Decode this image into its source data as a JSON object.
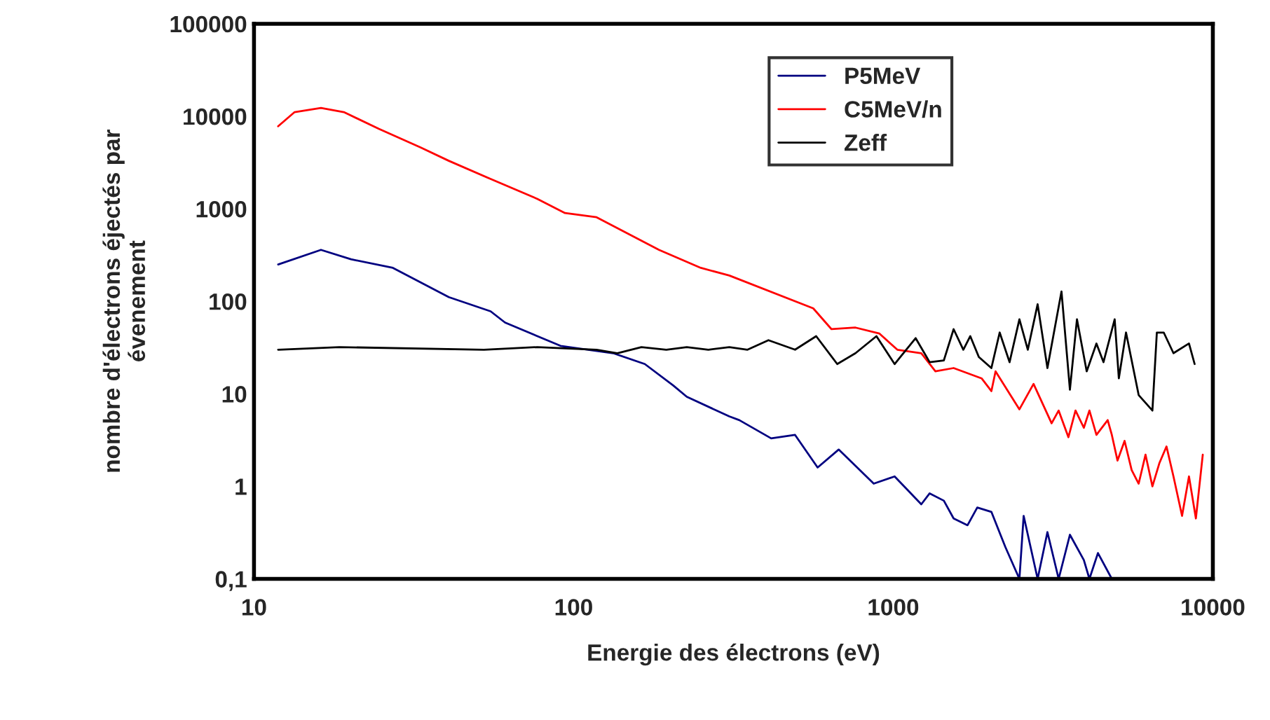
{
  "chart_data": {
    "type": "line",
    "xlabel": "Energie des électrons (eV)",
    "ylabel": "nombre d'électrons éjectés par\névenement",
    "log": "xy",
    "xlim": [
      10,
      10000
    ],
    "xticks": [
      10,
      100,
      1000,
      10000
    ],
    "ylim": [
      0.1,
      100000
    ],
    "yticks": [
      {
        "value": 0.1,
        "label": "0,1"
      },
      1,
      10,
      100,
      1000,
      10000,
      100000
    ],
    "grid": false,
    "legend": "top right",
    "marker": "none",
    "line_style": "solid",
    "series": [
      {
        "name": "P5MeV",
        "color": "#000080",
        "x": [
          11.9,
          16.2,
          20.1,
          27.2,
          40.7,
          55,
          61,
          91,
          133,
          167,
          205,
          226,
          307,
          330,
          415,
          493,
          580,
          675,
          869,
          1010,
          1224,
          1300,
          1440,
          1545,
          1708,
          1832,
          2028,
          2244,
          2482,
          2559,
          2830,
          3037,
          3293,
          3571,
          3948,
          4110,
          4370,
          4830
        ],
        "values": [
          250,
          360,
          285,
          230,
          111,
          78,
          59,
          33,
          27.5,
          21,
          12.3,
          9.3,
          5.7,
          5.2,
          3.3,
          3.6,
          1.6,
          2.5,
          1.07,
          1.28,
          0.64,
          0.84,
          0.7,
          0.45,
          0.38,
          0.59,
          0.53,
          0.22,
          0.1,
          0.48,
          0.1,
          0.32,
          0.1,
          0.3,
          0.16,
          0.1,
          0.19,
          0.1
        ]
      },
      {
        "name": "C5MeV/n",
        "color": "#ff0000",
        "x": [
          11.9,
          13.4,
          16.2,
          19.1,
          24.6,
          33.2,
          40.7,
          55,
          77,
          94,
          118,
          185,
          250,
          307,
          562,
          641,
          762,
          904,
          1030,
          1224,
          1355,
          1545,
          1890,
          2028,
          2090,
          2482,
          2748,
          3130,
          3293,
          3533,
          3718,
          3948,
          4110,
          4323,
          4688,
          4830,
          5032,
          5295,
          5571,
          5860,
          6157,
          6470,
          6810,
          7160,
          7530,
          8010,
          8420,
          8850,
          9300
        ],
        "values": [
          7800,
          11100,
          12300,
          11100,
          7300,
          4600,
          3300,
          2100,
          1280,
          900,
          810,
          360,
          230,
          190,
          84,
          50,
          52,
          45,
          30,
          27.5,
          17.5,
          19,
          14.7,
          10.7,
          17.5,
          6.8,
          12.8,
          4.8,
          6.6,
          3.4,
          6.6,
          4.3,
          6.6,
          3.6,
          5.2,
          3.6,
          1.9,
          3.1,
          1.5,
          1.07,
          2.2,
          1.0,
          1.8,
          2.7,
          1.28,
          0.48,
          1.28,
          0.45,
          2.2
        ]
      },
      {
        "name": "Zeff",
        "color": "#000000",
        "x": [
          11.9,
          18.5,
          52.4,
          77,
          118,
          137,
          163,
          195,
          226,
          264,
          307,
          350,
          407,
          493,
          574,
          668,
          762,
          886,
          1010,
          1175,
          1300,
          1440,
          1545,
          1657,
          1742,
          1853,
          2028,
          2153,
          2312,
          2482,
          2637,
          2830,
          3037,
          3361,
          3571,
          3757,
          4030,
          4323,
          4548,
          4930,
          5080,
          5350,
          5860,
          6470,
          6680,
          7020,
          7530,
          8420,
          8770
        ],
        "values": [
          30,
          32,
          30,
          32,
          30,
          27.5,
          32,
          30,
          32,
          30,
          32,
          30,
          38,
          30,
          42,
          21,
          27.5,
          42,
          21,
          40,
          22,
          23,
          50,
          30,
          42,
          25,
          19,
          46,
          22,
          64,
          30,
          93,
          19,
          128,
          11.1,
          64,
          17.5,
          35,
          22,
          64,
          14.7,
          46,
          9.7,
          6.6,
          46,
          46,
          27.5,
          35,
          21
        ]
      }
    ]
  }
}
